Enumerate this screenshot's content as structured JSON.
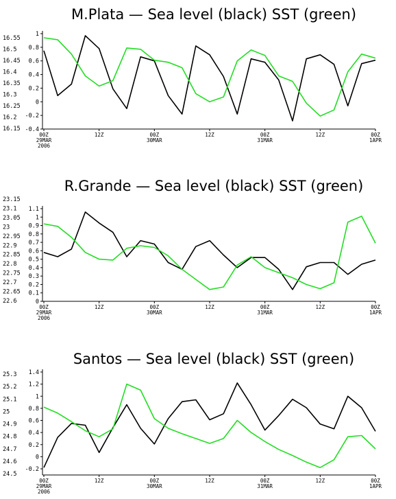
{
  "chart_data": [
    {
      "type": "line",
      "title": "M.Plata — Sea level (black) SST (green)",
      "left_axis": {
        "ticks": [
          "16.55",
          "16.5",
          "16.45",
          "16.4",
          "16.35",
          "16.3",
          "16.25",
          "16.2",
          "16.15"
        ],
        "range": [
          16.15,
          16.55
        ]
      },
      "right_axis": {
        "ticks": [
          "1",
          "0.8",
          "0.6",
          "0.4",
          "0.2",
          "0",
          "-0.2",
          "-0.4"
        ],
        "range": [
          -0.4,
          1.0
        ]
      },
      "x_ticks": [
        {
          "lines": [
            "00Z",
            "29MAR",
            "2006"
          ],
          "hour": 0
        },
        {
          "lines": [
            "12Z"
          ],
          "hour": 12
        },
        {
          "lines": [
            "00Z",
            "30MAR"
          ],
          "hour": 24
        },
        {
          "lines": [
            "12Z"
          ],
          "hour": 36
        },
        {
          "lines": [
            "00Z",
            "31MAR"
          ],
          "hour": 48
        },
        {
          "lines": [
            "12Z"
          ],
          "hour": 60
        },
        {
          "lines": [
            "00Z",
            "1APR"
          ],
          "hour": 72
        }
      ],
      "series": [
        {
          "name": "Sea level",
          "color": "#000000",
          "axis": "right",
          "x": [
            0,
            3,
            6,
            9,
            12,
            15,
            18,
            21,
            24,
            27,
            30,
            33,
            36,
            39,
            42,
            45,
            48,
            51,
            54,
            57,
            60,
            63,
            66,
            69,
            72
          ],
          "values": [
            0.75,
            0.09,
            0.26,
            0.97,
            0.78,
            0.19,
            -0.1,
            0.66,
            0.6,
            0.09,
            -0.18,
            0.82,
            0.69,
            0.37,
            -0.18,
            0.63,
            0.58,
            0.32,
            -0.28,
            0.63,
            0.69,
            0.55,
            -0.06,
            0.56,
            0.61
          ]
        },
        {
          "name": "SST",
          "color": "#22dd22",
          "axis": "right",
          "x": [
            0,
            3,
            6,
            9,
            12,
            15,
            18,
            21,
            24,
            27,
            30,
            33,
            36,
            39,
            42,
            45,
            48,
            51,
            54,
            57,
            60,
            63,
            66,
            69,
            72
          ],
          "values": [
            0.94,
            0.91,
            0.7,
            0.38,
            0.23,
            0.31,
            0.79,
            0.77,
            0.61,
            0.58,
            0.5,
            0.12,
            0.0,
            0.07,
            0.6,
            0.76,
            0.68,
            0.38,
            0.3,
            -0.02,
            -0.21,
            -0.12,
            0.44,
            0.7,
            0.64
          ]
        }
      ]
    },
    {
      "type": "line",
      "title": "R.Grande — Sea level (black) SST (green)",
      "left_axis": {
        "ticks": [
          "23.15",
          "23.1",
          "23.05",
          "23",
          "22.95",
          "22.9",
          "22.85",
          "22.8",
          "22.75",
          "22.7",
          "22.65",
          "22.6"
        ],
        "range": [
          22.6,
          23.15
        ]
      },
      "right_axis": {
        "ticks": [
          "1.1",
          "1",
          "0.9",
          "0.8",
          "0.7",
          "0.6",
          "0.5",
          "0.4",
          "0.3",
          "0.2",
          "0.1",
          "0"
        ],
        "range": [
          0,
          1.1
        ]
      },
      "x_ticks": [
        {
          "lines": [
            "00Z",
            "29MAR",
            "2006"
          ],
          "hour": 0
        },
        {
          "lines": [
            "12Z"
          ],
          "hour": 12
        },
        {
          "lines": [
            "00Z",
            "30MAR"
          ],
          "hour": 24
        },
        {
          "lines": [
            "12Z"
          ],
          "hour": 36
        },
        {
          "lines": [
            "00Z",
            "31MAR"
          ],
          "hour": 48
        },
        {
          "lines": [
            "12Z"
          ],
          "hour": 60
        },
        {
          "lines": [
            "00Z",
            "1APR"
          ],
          "hour": 72
        }
      ],
      "series": [
        {
          "name": "Sea level",
          "color": "#000000",
          "axis": "right",
          "x": [
            0,
            3,
            6,
            9,
            12,
            15,
            18,
            21,
            24,
            27,
            30,
            33,
            36,
            39,
            42,
            45,
            48,
            51,
            54,
            57,
            60,
            63,
            66,
            69,
            72
          ],
          "values": [
            0.58,
            0.53,
            0.62,
            1.06,
            0.93,
            0.82,
            0.53,
            0.72,
            0.68,
            0.46,
            0.38,
            0.65,
            0.72,
            0.55,
            0.4,
            0.52,
            0.52,
            0.38,
            0.14,
            0.41,
            0.46,
            0.46,
            0.32,
            0.44,
            0.49
          ]
        },
        {
          "name": "SST",
          "color": "#22dd22",
          "axis": "right",
          "x": [
            0,
            3,
            6,
            9,
            12,
            15,
            18,
            21,
            24,
            27,
            30,
            33,
            36,
            39,
            42,
            45,
            48,
            51,
            54,
            57,
            60,
            63,
            66,
            69,
            72
          ],
          "values": [
            0.92,
            0.89,
            0.76,
            0.58,
            0.5,
            0.49,
            0.63,
            0.66,
            0.64,
            0.54,
            0.38,
            0.26,
            0.14,
            0.17,
            0.43,
            0.53,
            0.4,
            0.34,
            0.28,
            0.2,
            0.15,
            0.22,
            0.94,
            1.01,
            0.69
          ]
        }
      ]
    },
    {
      "type": "line",
      "title": "Santos — Sea level (black) SST (green)",
      "left_axis": {
        "ticks": [
          "25.3",
          "25.2",
          "25.1",
          "25",
          "24.9",
          "24.8",
          "24.7",
          "24.6",
          "24.5"
        ],
        "range": [
          24.5,
          25.3
        ]
      },
      "right_axis": {
        "ticks": [
          "1.4",
          "1.2",
          "1",
          "0.8",
          "0.6",
          "0.4",
          "0.2",
          "0",
          "-0.2"
        ],
        "range": [
          -0.2,
          1.4
        ]
      },
      "x_ticks": [
        {
          "lines": [
            "00Z",
            "29MAR",
            "2006"
          ],
          "hour": 0
        },
        {
          "lines": [
            "12Z"
          ],
          "hour": 12
        },
        {
          "lines": [
            "00Z",
            "30MAR"
          ],
          "hour": 24
        },
        {
          "lines": [
            "12Z"
          ],
          "hour": 36
        },
        {
          "lines": [
            "00Z",
            "31MAR"
          ],
          "hour": 48
        },
        {
          "lines": [
            "12Z"
          ],
          "hour": 60
        },
        {
          "lines": [
            "00Z",
            "1APR"
          ],
          "hour": 72
        }
      ],
      "series": [
        {
          "name": "Sea level",
          "color": "#000000",
          "axis": "right",
          "x": [
            0,
            3,
            6,
            9,
            12,
            15,
            18,
            21,
            24,
            27,
            30,
            33,
            36,
            39,
            42,
            45,
            48,
            51,
            54,
            57,
            60,
            63,
            66,
            69,
            72
          ],
          "values": [
            -0.18,
            0.32,
            0.55,
            0.52,
            0.07,
            0.48,
            0.86,
            0.47,
            0.21,
            0.63,
            0.91,
            0.94,
            0.61,
            0.71,
            1.22,
            0.86,
            0.44,
            0.68,
            0.95,
            0.81,
            0.54,
            0.46,
            1.0,
            0.81,
            0.42
          ]
        },
        {
          "name": "SST",
          "color": "#22dd22",
          "axis": "right",
          "x": [
            0,
            3,
            6,
            9,
            12,
            15,
            18,
            21,
            24,
            27,
            30,
            33,
            36,
            39,
            42,
            45,
            48,
            51,
            54,
            57,
            60,
            63,
            66,
            69,
            72
          ],
          "values": [
            0.82,
            0.72,
            0.58,
            0.43,
            0.33,
            0.46,
            1.2,
            1.1,
            0.63,
            0.47,
            0.38,
            0.3,
            0.22,
            0.3,
            0.6,
            0.4,
            0.25,
            0.12,
            0.02,
            -0.09,
            -0.18,
            -0.05,
            0.33,
            0.35,
            0.13
          ]
        }
      ]
    }
  ]
}
